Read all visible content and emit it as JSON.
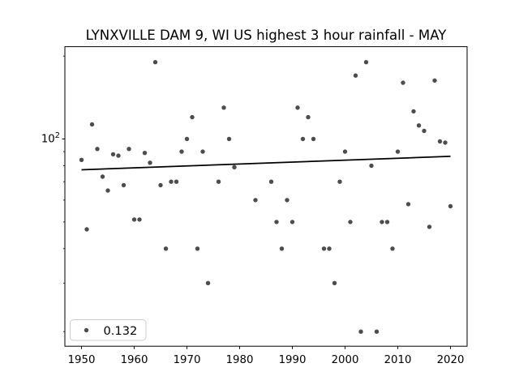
{
  "chart_data": {
    "type": "scatter",
    "title": "LYNXVILLE DAM 9, WI US highest 3 hour rainfall - MAY",
    "xlabel": "",
    "ylabel": "",
    "x_axis": {
      "ticks": [
        1950,
        1960,
        1970,
        1980,
        1990,
        2000,
        2010,
        2020
      ],
      "lim": [
        1946.85,
        2023.15
      ]
    },
    "y_axis": {
      "scale": "log",
      "base": "10",
      "exponent": "2",
      "major_tick_label": "10²",
      "major_ticks": [
        100
      ],
      "minor_ticks": [
        20,
        30,
        40,
        50,
        60,
        70,
        80,
        90,
        200
      ],
      "lim": [
        17.7,
        216.3
      ],
      "grid": false
    },
    "legend": {
      "position": "lower left",
      "entries": [
        {
          "marker": "point",
          "label": "0.132"
        }
      ]
    },
    "series": [
      {
        "name": "highest 3 hour rainfall",
        "points": [
          [
            1950,
            84
          ],
          [
            1951,
            47
          ],
          [
            1952,
            113
          ],
          [
            1953,
            92
          ],
          [
            1954,
            73
          ],
          [
            1955,
            65
          ],
          [
            1956,
            88
          ],
          [
            1957,
            87
          ],
          [
            1958,
            68
          ],
          [
            1959,
            92
          ],
          [
            1960,
            51
          ],
          [
            1961,
            51
          ],
          [
            1962,
            89
          ],
          [
            1963,
            82
          ],
          [
            1964,
            190
          ],
          [
            1965,
            68
          ],
          [
            1966,
            40
          ],
          [
            1967,
            70
          ],
          [
            1968,
            70
          ],
          [
            1969,
            90
          ],
          [
            1970,
            100
          ],
          [
            1971,
            120
          ],
          [
            1972,
            40
          ],
          [
            1973,
            90
          ],
          [
            1974,
            30
          ],
          [
            1976,
            70
          ],
          [
            1977,
            130
          ],
          [
            1978,
            100
          ],
          [
            1979,
            79
          ],
          [
            1983,
            60
          ],
          [
            1986,
            70
          ],
          [
            1987,
            50
          ],
          [
            1988,
            40
          ],
          [
            1989,
            60
          ],
          [
            1990,
            50
          ],
          [
            1991,
            130
          ],
          [
            1992,
            100
          ],
          [
            1993,
            120
          ],
          [
            1994,
            100
          ],
          [
            1996,
            40
          ],
          [
            1997,
            40
          ],
          [
            1998,
            30
          ],
          [
            1999,
            70
          ],
          [
            2000,
            90
          ],
          [
            2001,
            50
          ],
          [
            2002,
            170
          ],
          [
            2003,
            20
          ],
          [
            2004,
            190
          ],
          [
            2005,
            80
          ],
          [
            2006,
            20
          ],
          [
            2007,
            50
          ],
          [
            2008,
            50
          ],
          [
            2009,
            40
          ],
          [
            2010,
            90
          ],
          [
            2011,
            160
          ],
          [
            2012,
            58
          ],
          [
            2013,
            126
          ],
          [
            2014,
            112
          ],
          [
            2015,
            107
          ],
          [
            2016,
            48
          ],
          [
            2017,
            163
          ],
          [
            2018,
            98
          ],
          [
            2019,
            97
          ],
          [
            2020,
            57
          ]
        ]
      }
    ],
    "trend": {
      "label": "0.132",
      "slope_per_year": 0.132,
      "start": [
        1950,
        77.3
      ],
      "end": [
        2020,
        86.5
      ]
    },
    "colors": {
      "point": "#4d4d4d",
      "trend": "#000000",
      "axes": "#000000",
      "legend_border": "#cccccc",
      "background": "#ffffff"
    }
  }
}
